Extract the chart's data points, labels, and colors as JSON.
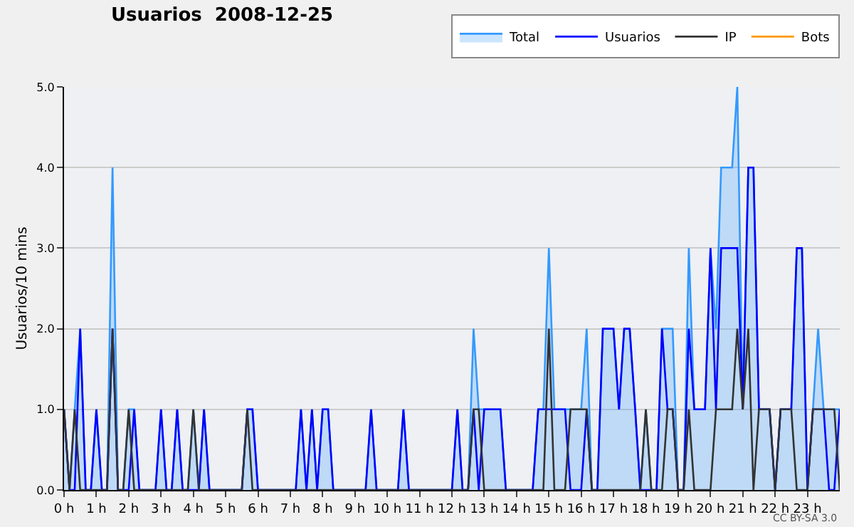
{
  "chart_data": {
    "type": "line",
    "title": "Usuarios  2008-12-25",
    "ylabel": "Usuarios/10 mins",
    "x": [
      0,
      0.17,
      0.33,
      0.5,
      0.67,
      0.83,
      1,
      1.17,
      1.33,
      1.5,
      1.67,
      1.83,
      2,
      2.17,
      2.33,
      2.5,
      2.67,
      2.83,
      3,
      3.17,
      3.33,
      3.5,
      3.67,
      3.83,
      4,
      4.17,
      4.33,
      4.5,
      4.67,
      4.83,
      5,
      5.17,
      5.33,
      5.5,
      5.67,
      5.83,
      6,
      6.17,
      6.33,
      6.5,
      6.67,
      6.83,
      7,
      7.17,
      7.33,
      7.5,
      7.67,
      7.83,
      8,
      8.17,
      8.33,
      8.5,
      8.67,
      8.83,
      9,
      9.17,
      9.33,
      9.5,
      9.67,
      9.83,
      10,
      10.17,
      10.33,
      10.5,
      10.67,
      10.83,
      11,
      11.17,
      11.33,
      11.5,
      11.67,
      11.83,
      12,
      12.17,
      12.33,
      12.5,
      12.67,
      12.83,
      13,
      13.17,
      13.33,
      13.5,
      13.67,
      13.83,
      14,
      14.17,
      14.33,
      14.5,
      14.67,
      14.83,
      15,
      15.17,
      15.33,
      15.5,
      15.67,
      15.83,
      16,
      16.17,
      16.33,
      16.5,
      16.67,
      16.83,
      17,
      17.17,
      17.33,
      17.5,
      17.67,
      17.83,
      18,
      18.17,
      18.33,
      18.5,
      18.67,
      18.83,
      19,
      19.17,
      19.33,
      19.5,
      19.67,
      19.83,
      20,
      20.17,
      20.33,
      20.5,
      20.67,
      20.83,
      21,
      21.17,
      21.33,
      21.5,
      21.67,
      21.83,
      22,
      22.17,
      22.33,
      22.5,
      22.67,
      22.83,
      23,
      23.17,
      23.33,
      23.5,
      23.67,
      23.83,
      24
    ],
    "series": [
      {
        "name": "Total",
        "type": "area",
        "color": "#3399ff",
        "values": [
          1,
          0,
          1,
          2,
          0,
          0,
          1,
          0,
          0,
          4,
          0,
          0,
          1,
          1,
          0,
          0,
          0,
          0,
          1,
          0,
          0,
          1,
          0,
          0,
          1,
          0,
          1,
          0,
          0,
          0,
          0,
          0,
          0,
          0,
          1,
          1,
          0,
          0,
          0,
          0,
          0,
          0,
          0,
          0,
          1,
          0,
          1,
          0,
          1,
          1,
          0,
          0,
          0,
          0,
          0,
          0,
          0,
          1,
          0,
          0,
          0,
          0,
          0,
          1,
          0,
          0,
          0,
          0,
          0,
          0,
          0,
          0,
          0,
          1,
          0,
          0,
          2,
          1,
          1,
          1,
          1,
          1,
          0,
          0,
          0,
          0,
          0,
          0,
          1,
          1,
          3,
          1,
          1,
          1,
          1,
          1,
          1,
          2,
          0,
          0,
          2,
          2,
          2,
          1,
          2,
          2,
          1,
          0,
          1,
          0,
          0,
          2,
          2,
          2,
          0,
          0,
          3,
          1,
          1,
          1,
          3,
          2,
          4,
          4,
          4,
          5,
          1,
          4,
          4,
          1,
          1,
          1,
          0,
          1,
          1,
          1,
          3,
          3,
          0,
          1,
          2,
          1,
          1,
          1,
          1
        ]
      },
      {
        "name": "Usuarios",
        "color": "#0000ff",
        "values": [
          1,
          0,
          0,
          2,
          0,
          0,
          1,
          0,
          0,
          2,
          0,
          0,
          0,
          1,
          0,
          0,
          0,
          0,
          1,
          0,
          0,
          1,
          0,
          0,
          0,
          0,
          1,
          0,
          0,
          0,
          0,
          0,
          0,
          0,
          1,
          1,
          0,
          0,
          0,
          0,
          0,
          0,
          0,
          0,
          1,
          0,
          1,
          0,
          1,
          1,
          0,
          0,
          0,
          0,
          0,
          0,
          0,
          1,
          0,
          0,
          0,
          0,
          0,
          1,
          0,
          0,
          0,
          0,
          0,
          0,
          0,
          0,
          0,
          1,
          0,
          0,
          1,
          0,
          1,
          1,
          1,
          1,
          0,
          0,
          0,
          0,
          0,
          0,
          1,
          1,
          1,
          1,
          1,
          1,
          0,
          0,
          0,
          1,
          0,
          0,
          2,
          2,
          2,
          1,
          2,
          2,
          1,
          0,
          0,
          0,
          0,
          2,
          1,
          1,
          0,
          0,
          2,
          1,
          1,
          1,
          3,
          1,
          3,
          3,
          3,
          3,
          1,
          4,
          4,
          1,
          1,
          1,
          0,
          1,
          1,
          1,
          3,
          3,
          0,
          1,
          1,
          1,
          0,
          0,
          1
        ]
      },
      {
        "name": "IP",
        "color": "#333333",
        "values": [
          1,
          0,
          1,
          0,
          0,
          0,
          0,
          0,
          0,
          2,
          0,
          0,
          1,
          0,
          0,
          0,
          0,
          0,
          0,
          0,
          0,
          0,
          0,
          0,
          1,
          0,
          0,
          0,
          0,
          0,
          0,
          0,
          0,
          0,
          1,
          0,
          0,
          0,
          0,
          0,
          0,
          0,
          0,
          0,
          0,
          0,
          0,
          0,
          0,
          0,
          0,
          0,
          0,
          0,
          0,
          0,
          0,
          0,
          0,
          0,
          0,
          0,
          0,
          0,
          0,
          0,
          0,
          0,
          0,
          0,
          0,
          0,
          0,
          0,
          0,
          0,
          1,
          1,
          0,
          0,
          0,
          0,
          0,
          0,
          0,
          0,
          0,
          0,
          0,
          0,
          2,
          0,
          0,
          0,
          1,
          1,
          1,
          1,
          0,
          0,
          0,
          0,
          0,
          0,
          0,
          0,
          0,
          0,
          1,
          0,
          0,
          0,
          1,
          1,
          0,
          0,
          1,
          0,
          0,
          0,
          0,
          1,
          1,
          1,
          1,
          2,
          1,
          2,
          0,
          1,
          1,
          1,
          0,
          1,
          1,
          1,
          0,
          0,
          0,
          1,
          1,
          1,
          1,
          1,
          0
        ]
      },
      {
        "name": "Bots",
        "color": "#ff9900",
        "values": [
          null,
          null,
          null,
          null,
          null,
          null,
          null,
          null,
          null,
          null,
          null,
          null,
          null,
          null,
          null,
          null,
          null,
          null,
          null,
          null,
          null,
          null,
          null,
          null,
          null,
          null,
          null,
          null,
          null,
          null,
          null,
          null,
          null,
          null,
          null,
          null,
          null,
          null,
          null,
          null,
          null,
          null,
          null,
          null,
          null,
          null,
          null,
          null,
          null,
          null,
          null,
          null,
          null,
          null,
          null,
          null,
          null,
          null,
          null,
          null,
          null,
          null,
          null,
          null,
          null,
          null,
          null,
          null,
          null,
          null,
          null,
          null,
          null,
          null,
          null,
          null,
          null,
          null,
          null,
          null,
          null,
          null,
          null,
          null,
          null,
          null,
          null,
          null,
          null,
          null,
          null,
          null,
          null,
          null,
          null,
          null,
          null,
          null,
          null,
          null,
          null,
          null,
          null,
          null,
          null,
          null,
          null,
          null,
          null,
          null,
          null,
          null,
          null,
          null,
          null,
          null,
          null,
          null,
          null,
          null,
          null,
          null,
          null,
          null,
          null,
          null,
          null,
          null,
          null,
          null,
          null,
          null,
          null,
          null,
          null,
          null,
          null,
          null,
          null,
          null,
          null,
          null,
          null,
          null,
          null
        ]
      }
    ],
    "xlim": [
      0,
      24
    ],
    "xticks": [
      {
        "value": 0,
        "label": "0 h"
      },
      {
        "value": 1,
        "label": "1 h"
      },
      {
        "value": 2,
        "label": "2 h"
      },
      {
        "value": 3,
        "label": "3 h"
      },
      {
        "value": 4,
        "label": "4 h"
      },
      {
        "value": 5,
        "label": "5 h"
      },
      {
        "value": 6,
        "label": "6 h"
      },
      {
        "value": 7,
        "label": "7 h"
      },
      {
        "value": 8,
        "label": "8 h"
      },
      {
        "value": 9,
        "label": "9 h"
      },
      {
        "value": 10,
        "label": "10 h"
      },
      {
        "value": 11,
        "label": "11 h"
      },
      {
        "value": 12,
        "label": "12 h"
      },
      {
        "value": 13,
        "label": "13 h"
      },
      {
        "value": 14,
        "label": "14 h"
      },
      {
        "value": 15,
        "label": "15 h"
      },
      {
        "value": 16,
        "label": "16 h"
      },
      {
        "value": 17,
        "label": "17 h"
      },
      {
        "value": 18,
        "label": "18 h"
      },
      {
        "value": 19,
        "label": "19 h"
      },
      {
        "value": 20,
        "label": "20 h"
      },
      {
        "value": 21,
        "label": "21 h"
      },
      {
        "value": 22,
        "label": "22 h"
      },
      {
        "value": 23,
        "label": "23 h"
      }
    ],
    "ylim": [
      0,
      5
    ],
    "yticks": [
      {
        "value": 0,
        "label": "0.0"
      },
      {
        "value": 1,
        "label": "1.0"
      },
      {
        "value": 2,
        "label": "2.0"
      },
      {
        "value": 3,
        "label": "3.0"
      },
      {
        "value": 4,
        "label": "4.0"
      },
      {
        "value": 5,
        "label": "5.0"
      }
    ],
    "grid": "y",
    "legend": "top right",
    "annotations": [
      "CC BY-SA 3.0"
    ]
  }
}
